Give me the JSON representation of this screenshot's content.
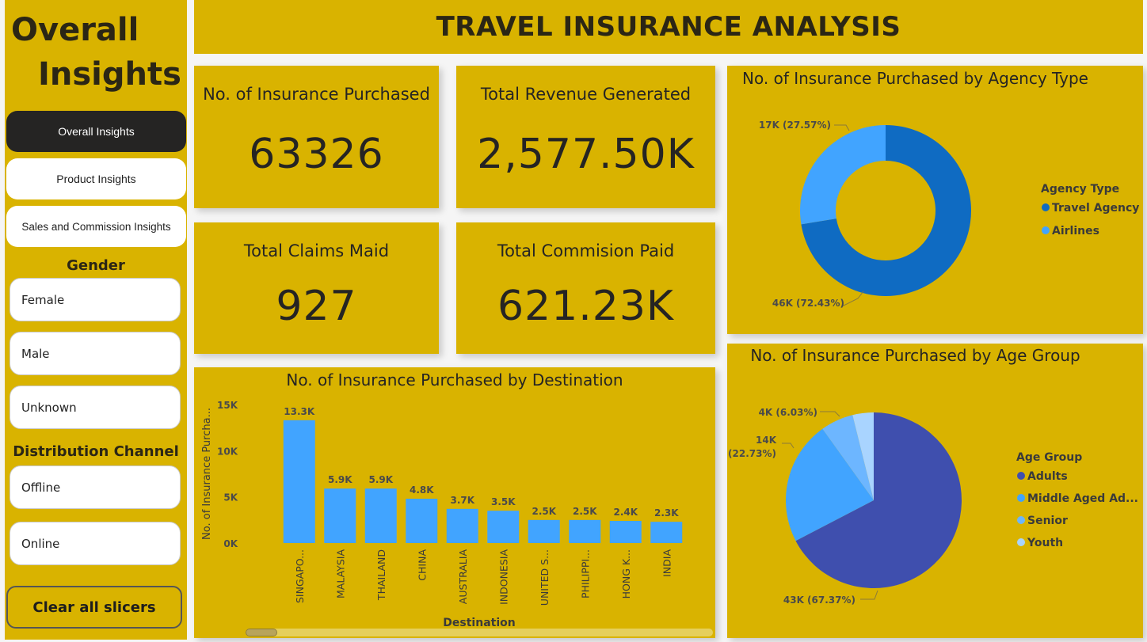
{
  "sidebar": {
    "title_line1": "Overall",
    "title_line2": "Insights",
    "nav": [
      {
        "label": "Overall Insights",
        "active": true
      },
      {
        "label": "Product Insights",
        "active": false
      },
      {
        "label": "Sales and Commission Insights",
        "active": false
      }
    ],
    "gender_label": "Gender",
    "gender_options": [
      "Female",
      "Male",
      "Unknown"
    ],
    "channel_label": "Distribution Channel",
    "channel_options": [
      "Offline",
      "Online"
    ],
    "clear_label": "Clear all slicers"
  },
  "header": {
    "title": "TRAVEL INSURANCE ANALYSIS"
  },
  "kpis": [
    {
      "label": "No. of Insurance Purchased",
      "value": "63326"
    },
    {
      "label": "Total Revenue Generated",
      "value": "2,577.50K"
    },
    {
      "label": "Total Claims Maid",
      "value": "927"
    },
    {
      "label": "Total Commision Paid",
      "value": "621.23K"
    }
  ],
  "colors": {
    "background": "#d9b300",
    "text": "#252423",
    "travel_agency": "#0f6bc2",
    "airlines": "#41a4ff",
    "adults": "#3f4fae",
    "middle_aged": "#41a4ff",
    "senior": "#6db6ff",
    "youth": "#a9d4ff",
    "bar": "#41a4ff"
  },
  "chart_data": [
    {
      "type": "bar",
      "title": "No. of Insurance Purchased by Destination",
      "xlabel": "Destination",
      "ylabel": "No. of Insurance Purcha...",
      "categories": [
        "SINGAPO...",
        "MALAYSIA",
        "THAILAND",
        "CHINA",
        "AUSTRALIA",
        "INDONESIA",
        "UNITED S...",
        "PHILIPPI...",
        "HONG K...",
        "INDIA"
      ],
      "values": [
        13300,
        5900,
        5900,
        4800,
        3700,
        3500,
        2500,
        2500,
        2400,
        2300
      ],
      "data_labels": [
        "13.3K",
        "5.9K",
        "5.9K",
        "4.8K",
        "3.7K",
        "3.5K",
        "2.5K",
        "2.5K",
        "2.4K",
        "2.3K"
      ],
      "yticks": [
        "0K",
        "5K",
        "10K",
        "15K"
      ],
      "ylim": [
        0,
        15000
      ],
      "grid": false
    },
    {
      "type": "pie",
      "subtype": "donut",
      "title": "No. of Insurance Purchased by Agency Type",
      "legend_title": "Agency Type",
      "legend_position": "right",
      "slices": [
        {
          "name": "Travel Agency",
          "value": 72.43,
          "label": "46K (72.43%)",
          "color_key": "travel_agency"
        },
        {
          "name": "Airlines",
          "value": 27.57,
          "label": "17K (27.57%)",
          "color_key": "airlines"
        }
      ]
    },
    {
      "type": "pie",
      "title": "No. of Insurance Purchased by Age Group",
      "legend_title": "Age Group",
      "legend_position": "right",
      "slices": [
        {
          "name": "Adults",
          "value": 67.37,
          "label": "43K (67.37%)",
          "color_key": "adults"
        },
        {
          "name": "Middle Aged Ad...",
          "value": 22.73,
          "label": "14K (22.73%)",
          "color_key": "middle_aged"
        },
        {
          "name": "Senior",
          "value": 6.03,
          "label": "4K (6.03%)",
          "color_key": "senior"
        },
        {
          "name": "Youth",
          "value": 3.87,
          "label": "",
          "color_key": "youth"
        }
      ]
    }
  ]
}
